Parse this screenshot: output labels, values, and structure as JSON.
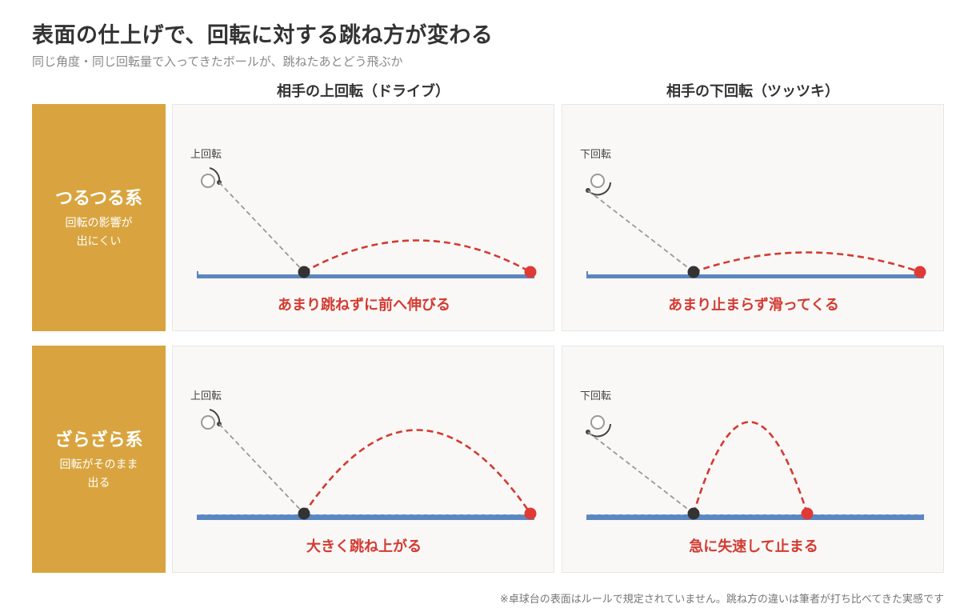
{
  "title": "表面の仕上げで、回転に対する跳ね方が変わる",
  "subtitle": "同じ角度・同じ回転量で入ってきたボールが、跳ねたあとどう飛ぶか",
  "columns": [
    {
      "label": "相手の上回転（ドライブ）"
    },
    {
      "label": "相手の下回転（ツッツキ）"
    }
  ],
  "rows": [
    {
      "name": "つるつる系",
      "desc_line1": "回転の影響が",
      "desc_line2": "出にくい"
    },
    {
      "name": "ざらざら系",
      "desc_line1": "回転がそのまま",
      "desc_line2": "出る"
    }
  ],
  "panels": [
    {
      "spin_label": "上回転",
      "spin": "top",
      "surface": "smooth",
      "result": "あまり跳ねずに前へ伸びる"
    },
    {
      "spin_label": "下回転",
      "spin": "bottom",
      "surface": "smooth",
      "result": "あまり止まらず滑ってくる"
    },
    {
      "spin_label": "上回転",
      "spin": "top",
      "surface": "rough",
      "result": "大きく跳ね上がる"
    },
    {
      "spin_label": "下回転",
      "spin": "bottom",
      "surface": "rough",
      "result": "急に失速して止まる"
    }
  ],
  "colors": {
    "row_label_bg": "#d9a43f",
    "table_surface": "#5b87c0",
    "result_text": "#d33a32",
    "bounce_point": "#333333",
    "landing_point": "#e03a36",
    "incoming_path": "#999999"
  },
  "footnote": "※卓球台の表面はルールで規定されていません。跳ね方の違いは筆者が打ち比べてきた実感です"
}
